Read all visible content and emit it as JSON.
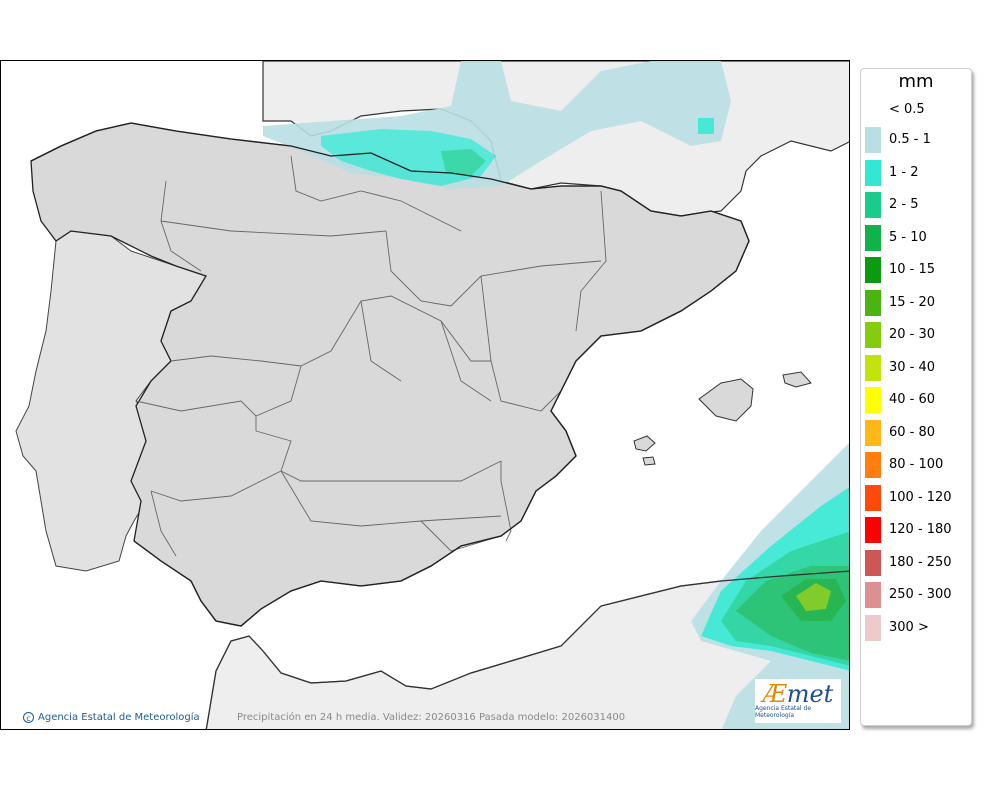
{
  "legend": {
    "unit": "mm",
    "below_label": "< 0.5",
    "classes": [
      {
        "label": "0.5 - 1",
        "color": "#b9dfe4"
      },
      {
        "label": "1 - 2",
        "color": "#33e8d2"
      },
      {
        "label": "2 - 5",
        "color": "#19cc8a"
      },
      {
        "label": "5 - 10",
        "color": "#12b24a"
      },
      {
        "label": "10 - 15",
        "color": "#0b9a10"
      },
      {
        "label": "15 - 20",
        "color": "#4cb411"
      },
      {
        "label": "20 - 30",
        "color": "#86cc0e"
      },
      {
        "label": "30 - 40",
        "color": "#c4e20e"
      },
      {
        "label": "40 - 60",
        "color": "#ffff00"
      },
      {
        "label": "60 - 80",
        "color": "#ffb817"
      },
      {
        "label": "80 - 100",
        "color": "#ff7e0d"
      },
      {
        "label": "100 - 120",
        "color": "#ff4a0c"
      },
      {
        "label": "120 - 180",
        "color": "#ff0000"
      },
      {
        "label": "180 - 250",
        "color": "#cd5757"
      },
      {
        "label": "250 - 300",
        "color": "#dd9090"
      },
      {
        "label": "300 >",
        "color": "#eecaca"
      }
    ]
  },
  "footer": {
    "credit": "Agencia Estatal de Meteorología",
    "caption": "Precipitación en 24 h media. Validez: 20260316 Pasada modelo: 2026031400"
  },
  "logo": {
    "mark_a": "Æ",
    "mark_rest": "met",
    "subtitle": "Agencia Estatal de Meteorología"
  },
  "colors": {
    "land": "#d9d9d9",
    "land_outside": "#eeeeee",
    "sea": "#ffffff",
    "border": "#333333"
  }
}
